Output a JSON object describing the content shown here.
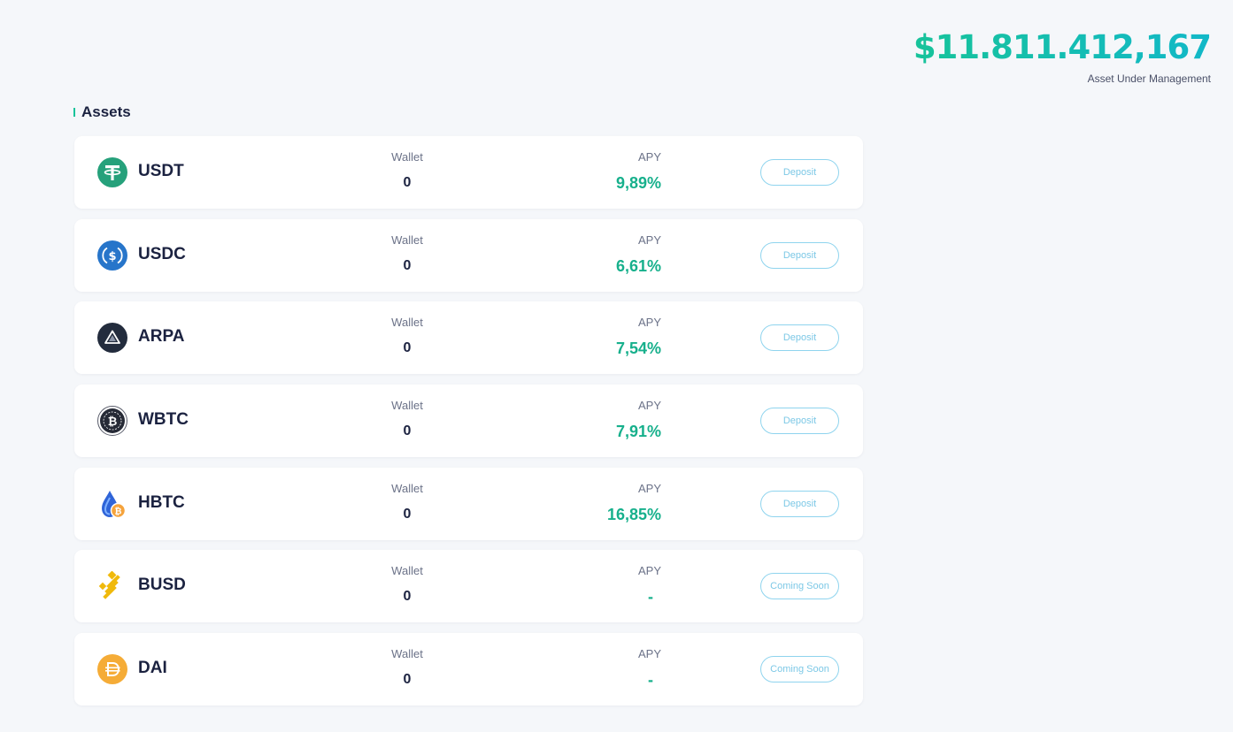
{
  "header": {
    "aum_value": "$11.811.412,167",
    "aum_label": "Asset Under Management"
  },
  "section": {
    "title": "Assets"
  },
  "assets": [
    {
      "symbol": "USDT",
      "icon": "usdt-icon",
      "wallet_label": "Wallet",
      "wallet": "0",
      "apy_label": "APY",
      "apy": "9,89%",
      "action": "Deposit"
    },
    {
      "symbol": "USDC",
      "icon": "usdc-icon",
      "wallet_label": "Wallet",
      "wallet": "0",
      "apy_label": "APY",
      "apy": "6,61%",
      "action": "Deposit"
    },
    {
      "symbol": "ARPA",
      "icon": "arpa-icon",
      "wallet_label": "Wallet",
      "wallet": "0",
      "apy_label": "APY",
      "apy": "7,54%",
      "action": "Deposit"
    },
    {
      "symbol": "WBTC",
      "icon": "wbtc-icon",
      "wallet_label": "Wallet",
      "wallet": "0",
      "apy_label": "APY",
      "apy": "7,91%",
      "action": "Deposit"
    },
    {
      "symbol": "HBTC",
      "icon": "hbtc-icon",
      "wallet_label": "Wallet",
      "wallet": "0",
      "apy_label": "APY",
      "apy": "16,85%",
      "action": "Deposit"
    },
    {
      "symbol": "BUSD",
      "icon": "busd-icon",
      "wallet_label": "Wallet",
      "wallet": "0",
      "apy_label": "APY",
      "apy": "-",
      "action": "Coming Soon"
    },
    {
      "symbol": "DAI",
      "icon": "dai-icon",
      "wallet_label": "Wallet",
      "wallet": "0",
      "apy_label": "APY",
      "apy": "-",
      "action": "Coming Soon"
    }
  ],
  "colors": {
    "accent_green": "#17b08c",
    "accent_teal": "#12b8c8",
    "button_border": "#8fd4ee",
    "background": "#f5f7fa"
  }
}
